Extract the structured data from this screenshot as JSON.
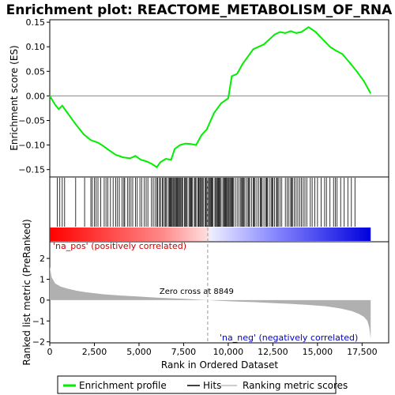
{
  "chart_data": {
    "type": "line",
    "title": "Enrichment plot: REACTOME_METABOLISM_OF_RNA",
    "top_panel": {
      "ylabel": "Enrichment score (ES)",
      "ylim": [
        -0.165,
        0.155
      ],
      "yticks": [
        -0.15,
        -0.1,
        -0.05,
        0.0,
        0.05,
        0.1,
        0.15
      ],
      "ytick_labels": [
        "−0.15",
        "−0.10",
        "−0.05",
        "0.00",
        "0.05",
        "0.10",
        "0.15"
      ],
      "series": [
        {
          "name": "Enrichment profile",
          "color": "#00ee00",
          "x": [
            0,
            300,
            500,
            700,
            900,
            1200,
            1500,
            1900,
            2300,
            2700,
            3000,
            3300,
            3700,
            4100,
            4500,
            4800,
            5100,
            5400,
            5700,
            6000,
            6200,
            6500,
            6800,
            7000,
            7300,
            7600,
            7900,
            8200,
            8500,
            8800,
            9200,
            9600,
            10000,
            10200,
            10500,
            10800,
            11100,
            11400,
            11700,
            12000,
            12300,
            12600,
            12900,
            13200,
            13500,
            13800,
            14100,
            14500,
            14900,
            15300,
            15700,
            16000,
            16400,
            16800,
            17200,
            17600,
            17980
          ],
          "y": [
            0.0,
            -0.018,
            -0.027,
            -0.02,
            -0.03,
            -0.045,
            -0.06,
            -0.078,
            -0.09,
            -0.095,
            -0.102,
            -0.11,
            -0.12,
            -0.125,
            -0.127,
            -0.122,
            -0.13,
            -0.133,
            -0.138,
            -0.145,
            -0.135,
            -0.128,
            -0.13,
            -0.108,
            -0.1,
            -0.097,
            -0.098,
            -0.1,
            -0.08,
            -0.068,
            -0.035,
            -0.015,
            -0.005,
            0.04,
            0.045,
            0.065,
            0.08,
            0.095,
            0.1,
            0.105,
            0.115,
            0.125,
            0.13,
            0.128,
            0.132,
            0.128,
            0.13,
            0.14,
            0.13,
            0.115,
            0.1,
            0.093,
            0.085,
            0.068,
            0.05,
            0.03,
            0.005
          ]
        }
      ]
    },
    "hits_panel": {
      "legend": "Hits",
      "positions": [
        420,
        560,
        700,
        830,
        1450,
        1950,
        2300,
        2380,
        2500,
        2600,
        2700,
        2850,
        3050,
        3150,
        3250,
        3400,
        3550,
        3700,
        3800,
        3900,
        4050,
        4150,
        4200,
        4350,
        4450,
        4550,
        4650,
        4800,
        4900,
        5050,
        5150,
        5300,
        5400,
        5500,
        5700,
        5800,
        5900,
        6000,
        6050,
        6150,
        6200,
        6300,
        6350,
        6450,
        6500,
        6550,
        6650,
        6700,
        6750,
        6800,
        6850,
        6900,
        6950,
        7000,
        7050,
        7100,
        7150,
        7200,
        7250,
        7300,
        7350,
        7400,
        7450,
        7550,
        7600,
        7650,
        7700,
        7800,
        7850,
        7900,
        7950,
        8000,
        8100,
        8150,
        8200,
        8300,
        8350,
        8400,
        8450,
        8500,
        8550,
        8600,
        8700,
        8750,
        8800,
        8850,
        8900,
        8950,
        9000,
        9050,
        9100,
        9150,
        9250,
        9300,
        9350,
        9400,
        9450,
        9500,
        9550,
        9600,
        9700,
        9750,
        9800,
        9850,
        9900,
        9950,
        10000,
        10050,
        10100,
        10150,
        10200,
        10250,
        10300,
        10400,
        10500,
        10600,
        10700,
        10750,
        10800,
        10850,
        10900,
        11000,
        11100,
        11150,
        11200,
        11300,
        11400,
        11450,
        11500,
        11600,
        11700,
        11800,
        11850,
        11900,
        12000,
        12100,
        12150,
        12200,
        12300,
        12400,
        12450,
        12500,
        12600,
        12700,
        12750,
        12800,
        12900,
        13000,
        13200,
        13300,
        13400,
        13500,
        13550,
        13600,
        13700,
        13800,
        13900,
        14000,
        14100,
        14200,
        14300,
        14400,
        14600,
        14700,
        14850,
        15000,
        15200,
        15400,
        15500,
        15700,
        15900,
        16000,
        16100,
        16300,
        16500,
        16700,
        16900,
        17100
      ]
    },
    "bottom_panel": {
      "ylabel": "Ranked list metric (PreRanked)",
      "xlabel": "Rank in Ordered Dataset",
      "xlim": [
        0,
        18990
      ],
      "ylim": [
        -2.05,
        2.8
      ],
      "xticks": [
        0,
        2500,
        5000,
        7500,
        10000,
        12500,
        15000,
        17500
      ],
      "xtick_labels": [
        "0",
        "2,500",
        "5,000",
        "7,500",
        "10,000",
        "12,500",
        "15,000",
        "17,500"
      ],
      "yticks": [
        -2,
        -1,
        0,
        1,
        2
      ],
      "ytick_labels": [
        "−2",
        "−1",
        "0",
        "1",
        "2"
      ],
      "metric_x": [
        0,
        100,
        300,
        600,
        1000,
        1500,
        2000,
        3000,
        4000,
        5000,
        6000,
        7000,
        8000,
        8849,
        9500,
        10500,
        11500,
        12500,
        13500,
        14500,
        15500,
        16300,
        16900,
        17300,
        17600,
        17800,
        17900,
        17980
      ],
      "metric_y": [
        1.6,
        1.1,
        0.8,
        0.65,
        0.55,
        0.45,
        0.38,
        0.28,
        0.22,
        0.17,
        0.12,
        0.08,
        0.04,
        0.0,
        -0.03,
        -0.07,
        -0.1,
        -0.14,
        -0.18,
        -0.23,
        -0.3,
        -0.4,
        -0.52,
        -0.65,
        -0.8,
        -1.0,
        -1.3,
        -1.85
      ],
      "zero_cross": 8849,
      "zero_cross_label": "Zero cross at 8849",
      "pos_label": "'na_pos' (positively correlated)",
      "neg_label": "'na_neg' (negatively correlated)"
    },
    "legend": {
      "items": [
        {
          "label": "Enrichment profile",
          "color": "#00ee00"
        },
        {
          "label": "Hits",
          "color": "#000000"
        },
        {
          "label": "Ranking metric scores",
          "color": "#bbbbbb"
        }
      ]
    }
  }
}
